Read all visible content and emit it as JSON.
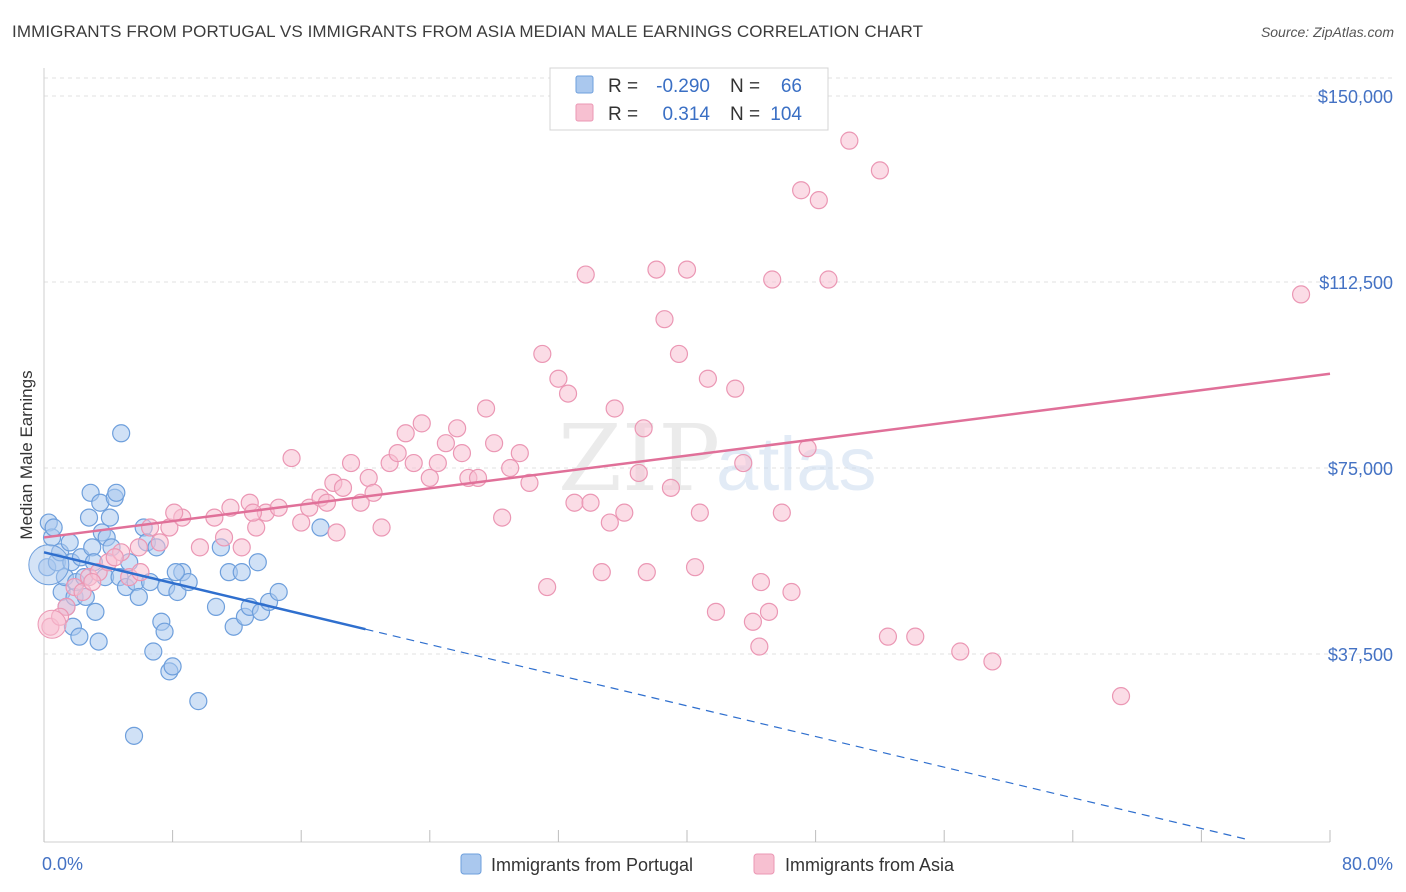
{
  "title": "IMMIGRANTS FROM PORTUGAL VS IMMIGRANTS FROM ASIA MEDIAN MALE EARNINGS CORRELATION CHART",
  "source": "Source: ZipAtlas.com",
  "watermark": {
    "zip": "ZIP",
    "atlas": "atlas"
  },
  "colors": {
    "portugal_fill": "#aac8ee",
    "portugal_stroke": "#6e9fdc",
    "portugal_line": "#2f6fce",
    "asia_fill": "#f7c0d1",
    "asia_stroke": "#eb97b4",
    "asia_line": "#e07099",
    "tick_text": "#4472c4",
    "grid": "#e2e2e2"
  },
  "legend": {
    "rows": [
      {
        "r_label": "R =",
        "r_value": "-0.290",
        "n_label": "N =",
        "n_value": "66"
      },
      {
        "r_label": "R =",
        "r_value": "0.314",
        "n_label": "N =",
        "n_value": "104"
      }
    ]
  },
  "chart_data": {
    "type": "scatter",
    "title": "IMMIGRANTS FROM PORTUGAL VS IMMIGRANTS FROM ASIA MEDIAN MALE EARNINGS CORRELATION CHART",
    "xlabel": "",
    "ylabel": "Median Male Earnings",
    "xlim": [
      0,
      80
    ],
    "ylim": [
      0,
      155000
    ],
    "x_tick_labels": [
      "0.0%",
      "80.0%"
    ],
    "y_ticks": [
      37500,
      75000,
      112500,
      150000
    ],
    "y_tick_labels": [
      "$37,500",
      "$75,000",
      "$112,500",
      "$150,000"
    ],
    "grid": true,
    "series": [
      {
        "name": "Immigrants from Portugal",
        "r": -0.29,
        "n": 66,
        "trend": {
          "x0": 0,
          "y0": 58000,
          "x1": 20,
          "y1": 42500,
          "dashed_to_x": 75,
          "dashed_to_y": 0
        },
        "points": [
          [
            0.2,
            55000
          ],
          [
            0.3,
            64000
          ],
          [
            0.5,
            61000
          ],
          [
            0.6,
            63000
          ],
          [
            0.8,
            56000
          ],
          [
            1.0,
            58000
          ],
          [
            1.1,
            50000
          ],
          [
            1.3,
            53000
          ],
          [
            1.4,
            47000
          ],
          [
            1.6,
            60000
          ],
          [
            1.7,
            56000
          ],
          [
            1.8,
            43000
          ],
          [
            1.9,
            49000
          ],
          [
            2.0,
            52000
          ],
          [
            2.2,
            41000
          ],
          [
            2.3,
            57000
          ],
          [
            2.5,
            53000
          ],
          [
            2.6,
            49000
          ],
          [
            2.8,
            65000
          ],
          [
            2.9,
            70000
          ],
          [
            3.0,
            59000
          ],
          [
            3.1,
            56000
          ],
          [
            3.2,
            46000
          ],
          [
            3.4,
            40000
          ],
          [
            3.5,
            68000
          ],
          [
            3.6,
            62000
          ],
          [
            3.8,
            53000
          ],
          [
            3.9,
            61000
          ],
          [
            4.1,
            65000
          ],
          [
            4.2,
            59000
          ],
          [
            4.4,
            69000
          ],
          [
            4.5,
            70000
          ],
          [
            4.7,
            53000
          ],
          [
            4.8,
            82000
          ],
          [
            5.1,
            51000
          ],
          [
            5.3,
            56000
          ],
          [
            5.6,
            21000
          ],
          [
            5.7,
            52000
          ],
          [
            5.9,
            49000
          ],
          [
            6.2,
            63000
          ],
          [
            6.4,
            60000
          ],
          [
            6.6,
            52000
          ],
          [
            6.8,
            38000
          ],
          [
            7.0,
            59000
          ],
          [
            7.3,
            44000
          ],
          [
            7.5,
            42000
          ],
          [
            7.6,
            51000
          ],
          [
            7.8,
            34000
          ],
          [
            8.0,
            35000
          ],
          [
            8.3,
            50000
          ],
          [
            8.6,
            54000
          ],
          [
            9.0,
            52000
          ],
          [
            9.6,
            28000
          ],
          [
            10.7,
            47000
          ],
          [
            11.0,
            59000
          ],
          [
            11.5,
            54000
          ],
          [
            11.8,
            43000
          ],
          [
            12.3,
            54000
          ],
          [
            12.5,
            45000
          ],
          [
            12.8,
            47000
          ],
          [
            13.3,
            56000
          ],
          [
            13.5,
            46000
          ],
          [
            14.0,
            48000
          ],
          [
            14.6,
            50000
          ],
          [
            17.2,
            63000
          ],
          [
            8.2,
            54000
          ]
        ]
      },
      {
        "name": "Immigrants from Asia",
        "r": 0.314,
        "n": 104,
        "trend": {
          "x0": 0,
          "y0": 61000,
          "x1": 80,
          "y1": 94000
        },
        "points": [
          [
            0.4,
            43000
          ],
          [
            1.4,
            47000
          ],
          [
            1.9,
            51000
          ],
          [
            2.8,
            53000
          ],
          [
            3.4,
            54000
          ],
          [
            4.0,
            56000
          ],
          [
            4.8,
            58000
          ],
          [
            5.3,
            53000
          ],
          [
            5.9,
            59000
          ],
          [
            6.6,
            63000
          ],
          [
            7.2,
            60000
          ],
          [
            7.8,
            63000
          ],
          [
            8.6,
            65000
          ],
          [
            9.7,
            59000
          ],
          [
            10.6,
            65000
          ],
          [
            11.2,
            61000
          ],
          [
            11.6,
            67000
          ],
          [
            12.3,
            59000
          ],
          [
            12.8,
            68000
          ],
          [
            13.2,
            63000
          ],
          [
            13.8,
            66000
          ],
          [
            14.6,
            67000
          ],
          [
            15.4,
            77000
          ],
          [
            16.0,
            64000
          ],
          [
            16.5,
            67000
          ],
          [
            17.2,
            69000
          ],
          [
            17.6,
            68000
          ],
          [
            18.0,
            72000
          ],
          [
            18.6,
            71000
          ],
          [
            19.1,
            76000
          ],
          [
            19.7,
            68000
          ],
          [
            20.2,
            73000
          ],
          [
            20.5,
            70000
          ],
          [
            21.0,
            63000
          ],
          [
            21.5,
            76000
          ],
          [
            22.0,
            78000
          ],
          [
            22.5,
            82000
          ],
          [
            23.0,
            76000
          ],
          [
            23.5,
            84000
          ],
          [
            24.0,
            73000
          ],
          [
            24.5,
            76000
          ],
          [
            25.0,
            80000
          ],
          [
            25.7,
            83000
          ],
          [
            26.4,
            73000
          ],
          [
            27.0,
            73000
          ],
          [
            27.5,
            87000
          ],
          [
            28.0,
            80000
          ],
          [
            28.5,
            65000
          ],
          [
            29.0,
            75000
          ],
          [
            29.6,
            78000
          ],
          [
            30.2,
            72000
          ],
          [
            31.0,
            98000
          ],
          [
            31.3,
            51000
          ],
          [
            32.0,
            93000
          ],
          [
            32.6,
            90000
          ],
          [
            33.0,
            68000
          ],
          [
            33.7,
            114000
          ],
          [
            34.0,
            68000
          ],
          [
            34.7,
            54000
          ],
          [
            35.2,
            64000
          ],
          [
            35.5,
            87000
          ],
          [
            36.1,
            66000
          ],
          [
            37.0,
            74000
          ],
          [
            37.5,
            54000
          ],
          [
            38.1,
            115000
          ],
          [
            38.6,
            105000
          ],
          [
            39.0,
            71000
          ],
          [
            39.5,
            98000
          ],
          [
            40.0,
            115000
          ],
          [
            40.5,
            55000
          ],
          [
            40.8,
            66000
          ],
          [
            41.3,
            93000
          ],
          [
            41.8,
            46000
          ],
          [
            43.0,
            91000
          ],
          [
            43.5,
            76000
          ],
          [
            44.1,
            44000
          ],
          [
            44.5,
            39000
          ],
          [
            45.1,
            46000
          ],
          [
            45.3,
            113000
          ],
          [
            45.9,
            66000
          ],
          [
            46.5,
            50000
          ],
          [
            47.1,
            131000
          ],
          [
            47.5,
            79000
          ],
          [
            48.2,
            129000
          ],
          [
            48.8,
            113000
          ],
          [
            50.1,
            141000
          ],
          [
            52.0,
            135000
          ],
          [
            52.5,
            41000
          ],
          [
            54.2,
            41000
          ],
          [
            57.0,
            38000
          ],
          [
            59.0,
            36000
          ],
          [
            67.0,
            29000
          ],
          [
            78.2,
            110000
          ],
          [
            4.4,
            57000
          ],
          [
            6.0,
            54000
          ],
          [
            2.4,
            50000
          ],
          [
            3.0,
            52000
          ],
          [
            1.0,
            45000
          ],
          [
            8.1,
            66000
          ],
          [
            13.0,
            66000
          ],
          [
            18.2,
            62000
          ],
          [
            26.0,
            78000
          ],
          [
            37.3,
            83000
          ],
          [
            44.6,
            52000
          ]
        ]
      }
    ]
  },
  "bottom_legend": [
    "Immigrants from Portugal",
    "Immigrants from Asia"
  ]
}
